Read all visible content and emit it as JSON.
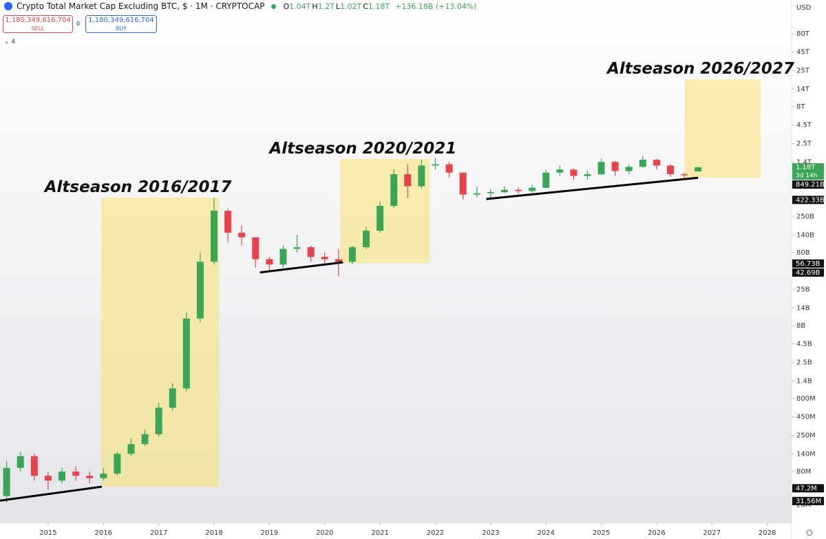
{
  "chart_data": {
    "type": "candlestick",
    "title": "Crypto Total Market Cap Excluding BTC, $ · 1M · CRYPTOCAP",
    "ohlc": [
      {
        "key": "O",
        "value": "1.04T"
      },
      {
        "key": "H",
        "value": "1.2T"
      },
      {
        "key": "L",
        "value": "1.02T"
      },
      {
        "key": "C",
        "value": "1.18T"
      }
    ],
    "change": "+136.18B (+13.04%)",
    "trade": {
      "sell_price": "1,180,349,616,704",
      "sell_label": "SELL",
      "spread": "0",
      "buy_price": "1,180,349,616,704",
      "buy_label": "BUY",
      "indicators": "4"
    },
    "currency": "USD",
    "log_scale": true,
    "up_color": "#3aa655",
    "down_color": "#e8424a",
    "x": [
      2014.25,
      2014.5,
      2014.75,
      2015.0,
      2015.25,
      2015.5,
      2015.75,
      2016.0,
      2016.25,
      2016.5,
      2016.75,
      2017.0,
      2017.25,
      2017.5,
      2017.75,
      2018.0,
      2018.25,
      2018.5,
      2018.75,
      2019.0,
      2019.25,
      2019.5,
      2019.75,
      2020.0,
      2020.25,
      2020.5,
      2020.75,
      2021.0,
      2021.25,
      2021.5,
      2021.75,
      2022.0,
      2022.25,
      2022.5,
      2022.75,
      2023.0,
      2023.25,
      2023.5,
      2023.75,
      2024.0,
      2024.25,
      2024.5,
      2024.75,
      2025.0,
      2025.25,
      2025.5,
      2025.75,
      2026.0,
      2026.25,
      2026.5,
      2026.75
    ],
    "open": [
      37000000.0,
      90000000.0,
      130000000.0,
      70000000.0,
      60000000.0,
      80000000.0,
      70000000.0,
      65000000.0,
      75000000.0,
      140000000.0,
      190000000.0,
      260000000.0,
      600000000.0,
      1100000000.0,
      10000000000.0,
      60000000000.0,
      300000000000.0,
      150000000000.0,
      130000000000.0,
      65000000000.0,
      55000000000.0,
      90000000000.0,
      95000000000.0,
      70000000000.0,
      65000000000.0,
      60000000000.0,
      95000000000.0,
      160000000000.0,
      350000000000.0,
      950000000000.0,
      650000000000.0,
      1250000000000.0,
      1300000000000.0,
      1000000000000.0,
      500000000000.0,
      520000000000.0,
      540000000000.0,
      580000000000.0,
      560000000000.0,
      620000000000.0,
      1000000000000.0,
      1100000000000.0,
      900000000000.0,
      950000000000.0,
      1400000000000.0,
      1050000000000.0,
      1200000000000.0,
      1500000000000.0,
      1250000000000.0,
      950000000000.0,
      1040000000000.0
    ],
    "high": [
      110000000.0,
      150000000.0,
      140000000.0,
      80000000.0,
      90000000.0,
      95000000.0,
      80000000.0,
      90000000.0,
      150000000.0,
      230000000.0,
      300000000.0,
      700000000.0,
      1300000000.0,
      12000000000.0,
      80000000000.0,
      450000000000.0,
      320000000000.0,
      190000000000.0,
      130000000000.0,
      70000000000.0,
      100000000000.0,
      140000000000.0,
      100000000000.0,
      80000000000.0,
      90000000000.0,
      100000000000.0,
      180000000000.0,
      400000000000.0,
      1100000000000.0,
      1300000000000.0,
      1500000000000.0,
      1600000000000.0,
      1400000000000.0,
      1000000000000.0,
      650000000000.0,
      600000000000.0,
      650000000000.0,
      630000000000.0,
      680000000000.0,
      1100000000000.0,
      1250000000000.0,
      1150000000000.0,
      1050000000000.0,
      1550000000000.0,
      1450000000000.0,
      1300000000000.0,
      1700000000000.0,
      1550000000000.0,
      1300000000000.0,
      1000000000000.0,
      1200000000000.0
    ],
    "low": [
      30000000.0,
      80000000.0,
      60000000.0,
      45000000.0,
      55000000.0,
      60000000.0,
      55000000.0,
      60000000.0,
      70000000.0,
      130000000.0,
      180000000.0,
      240000000.0,
      550000000.0,
      1000000000.0,
      9000000000.0,
      55000000000.0,
      110000000000.0,
      100000000000.0,
      50000000000.0,
      45000000000.0,
      50000000000.0,
      80000000000.0,
      60000000000.0,
      55000000000.0,
      38000000000.0,
      55000000000.0,
      90000000000.0,
      150000000000.0,
      330000000000.0,
      450000000000.0,
      600000000000.0,
      1100000000000.0,
      850000000000.0,
      430000000000.0,
      460000000000.0,
      440000000000.0,
      520000000000.0,
      510000000000.0,
      530000000000.0,
      610000000000.0,
      900000000000.0,
      800000000000.0,
      800000000000.0,
      930000000000.0,
      900000000000.0,
      950000000000.0,
      1150000000000.0,
      1100000000000.0,
      880000000000.0,
      850000000000.0,
      1020000000000.0
    ],
    "close": [
      90000000.0,
      130000000.0,
      70000000.0,
      60000000.0,
      80000000.0,
      70000000.0,
      65000000.0,
      75000000.0,
      140000000.0,
      190000000.0,
      260000000.0,
      600000000.0,
      1100000000.0,
      10000000000.0,
      60000000000.0,
      300000000000.0,
      150000000000.0,
      130000000000.0,
      65000000000.0,
      55000000000.0,
      90000000000.0,
      95000000000.0,
      70000000000.0,
      65000000000.0,
      60000000000.0,
      95000000000.0,
      160000000000.0,
      350000000000.0,
      950000000000.0,
      650000000000.0,
      1250000000000.0,
      1300000000000.0,
      1000000000000.0,
      500000000000.0,
      520000000000.0,
      540000000000.0,
      580000000000.0,
      560000000000.0,
      620000000000.0,
      1000000000000.0,
      1100000000000.0,
      900000000000.0,
      950000000000.0,
      1400000000000.0,
      1050000000000.0,
      1200000000000.0,
      1500000000000.0,
      1250000000000.0,
      950000000000.0,
      920000000000.0,
      1180000000000.0
    ],
    "xlim": [
      2014.13,
      2028.44
    ],
    "xticks": [
      2015,
      2016,
      2017,
      2018,
      2019,
      2020,
      2021,
      2022,
      2023,
      2024,
      2025,
      2026,
      2027,
      2028
    ],
    "ylim": [
      15700000.0,
      232000000000000.0
    ],
    "yticks": [
      {
        "value": 80000000000000.0,
        "label": "80T"
      },
      {
        "value": 45000000000000.0,
        "label": "45T"
      },
      {
        "value": 25000000000000.0,
        "label": "25T"
      },
      {
        "value": 14000000000000.0,
        "label": "14T"
      },
      {
        "value": 8000000000000.0,
        "label": "8T"
      },
      {
        "value": 4500000000000.0,
        "label": "4.5T"
      },
      {
        "value": 2500000000000.0,
        "label": "2.5T"
      },
      {
        "value": 1400000000000.0,
        "label": "1.4T"
      },
      {
        "value": 250000000000.0,
        "label": "250B"
      },
      {
        "value": 140000000000.0,
        "label": "140B"
      },
      {
        "value": 80000000000.0,
        "label": "80B"
      },
      {
        "value": 25000000000.0,
        "label": "25B"
      },
      {
        "value": 14000000000.0,
        "label": "14B"
      },
      {
        "value": 8000000000.0,
        "label": "8B"
      },
      {
        "value": 4500000000.0,
        "label": "4.5B"
      },
      {
        "value": 2500000000.0,
        "label": "2.5B"
      },
      {
        "value": 1400000000.0,
        "label": "1.4B"
      },
      {
        "value": 800000000.0,
        "label": "800M"
      },
      {
        "value": 450000000.0,
        "label": "450M"
      },
      {
        "value": 250000000.0,
        "label": "250M"
      },
      {
        "value": 140000000.0,
        "label": "140M"
      },
      {
        "value": 80000000.0,
        "label": "80M"
      },
      {
        "value": 28000000.0,
        "label": "28M"
      }
    ],
    "price_labels": [
      {
        "value": 1180000000000.0,
        "label": "1.18T"
      },
      {
        "value": 849210000000.0,
        "label": "849.21B"
      },
      {
        "value": 422330000000.0,
        "label": "422.33B"
      },
      {
        "value": 56730000000.0,
        "label": "56.73B"
      },
      {
        "value": 42690000000.0,
        "label": "42.69B"
      },
      {
        "value": 47200000.0,
        "label": "47.2M"
      },
      {
        "value": 31560000.0,
        "label": "31.56M"
      }
    ],
    "countdown": "3d 14h",
    "annotations": [
      {
        "text": "Altseason 2016/2017",
        "x": [
          2015.96,
          2018.09
        ],
        "y": [
          49600000.0,
          454000000000.0
        ]
      },
      {
        "text": "Altseason 2020/2021",
        "x": [
          2020.28,
          2021.9
        ],
        "y": [
          57700000000.0,
          1540000000000.0
        ]
      },
      {
        "text": "Altseason 2026/2027",
        "x": [
          2026.51,
          2027.88
        ],
        "y": [
          850000000000.0,
          19000000000000.0
        ]
      }
    ],
    "trendlines": [
      {
        "x": [
          2014.13,
          2015.97
        ],
        "y": [
          32000000.0,
          49600000.0
        ]
      },
      {
        "x": [
          2018.83,
          2020.33
        ],
        "y": [
          42800000000.0,
          59000000000.0
        ]
      },
      {
        "x": [
          2022.92,
          2026.75
        ],
        "y": [
          435000000000.0,
          850000000000.0
        ]
      }
    ]
  }
}
